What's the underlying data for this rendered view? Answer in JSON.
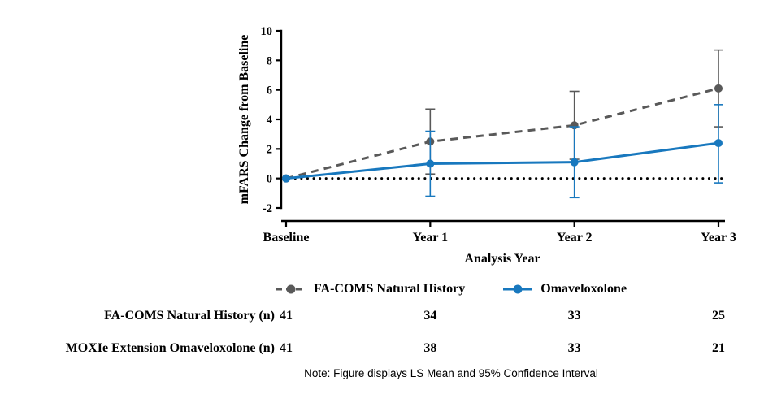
{
  "chart_data": {
    "type": "line",
    "title": "",
    "xlabel": "Analysis Year",
    "ylabel": "mFARS Change from Baseline",
    "categories": [
      "Baseline",
      "Year 1",
      "Year 2",
      "Year 3"
    ],
    "ylim": [
      -2,
      10
    ],
    "yticks": [
      -2,
      0,
      2,
      4,
      6,
      8,
      10
    ],
    "reference_line_y": 0,
    "grid": false,
    "legend_position": "bottom",
    "error_bars": "95% CI",
    "series": [
      {
        "name": "FA-COMS Natural History",
        "color": "#595959",
        "style": "dashed",
        "marker": "circle",
        "values": [
          0,
          2.5,
          3.6,
          6.1
        ],
        "ci_low": [
          0,
          0.3,
          1.3,
          3.5
        ],
        "ci_high": [
          0,
          4.7,
          5.9,
          8.7
        ]
      },
      {
        "name": "Omaveloxolone",
        "color": "#1878be",
        "style": "solid",
        "marker": "circle",
        "values": [
          0,
          1.0,
          1.1,
          2.4
        ],
        "ci_low": [
          0,
          -1.2,
          -1.3,
          -0.3
        ],
        "ci_high": [
          0,
          3.2,
          3.5,
          5.0
        ]
      }
    ],
    "note": "Note: Figure displays LS Mean and 95% Confidence Interval"
  },
  "counts_table": {
    "rows": [
      {
        "label": "FA-COMS Natural History (n)",
        "values": [
          "41",
          "34",
          "33",
          "25"
        ]
      },
      {
        "label": "MOXIe Extension Omaveloxolone (n)",
        "values": [
          "41",
          "38",
          "33",
          "21"
        ]
      }
    ]
  }
}
